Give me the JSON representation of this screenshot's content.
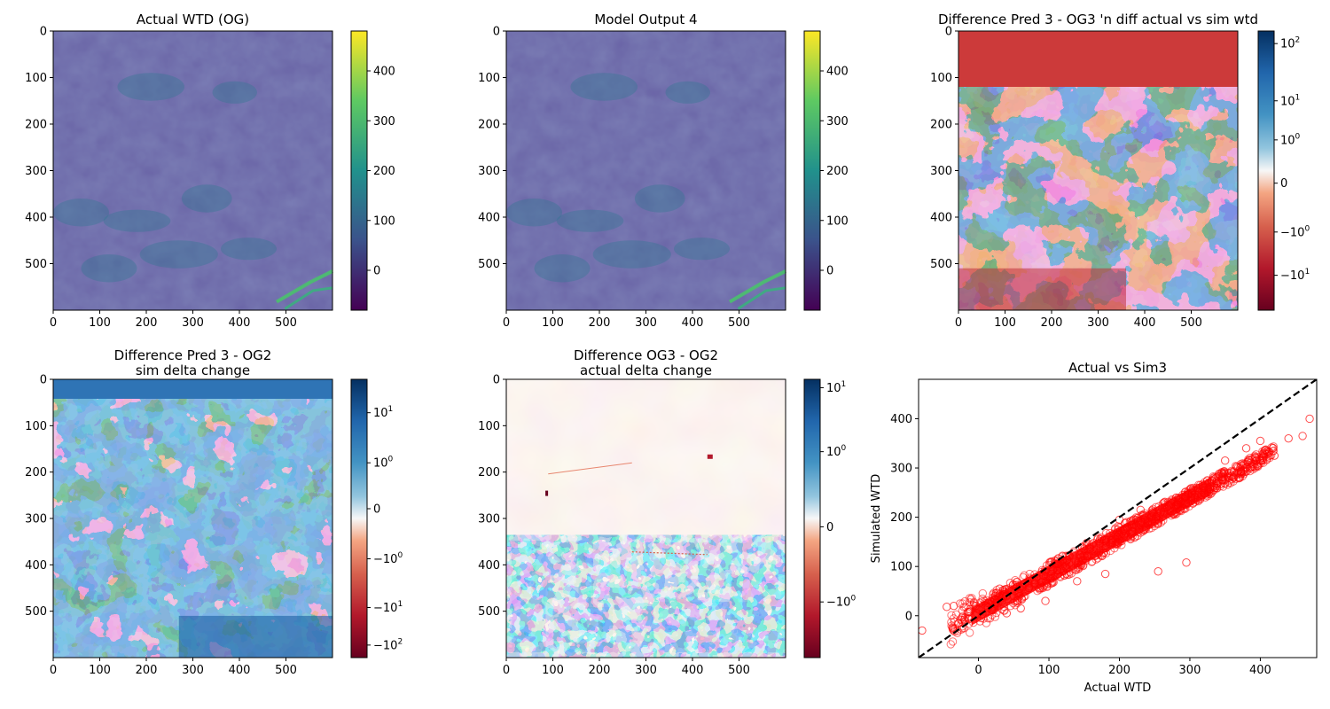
{
  "chart_data": [
    {
      "type": "heatmap",
      "title": "Actual WTD (OG)",
      "xticks": [
        0,
        100,
        200,
        300,
        400,
        500
      ],
      "yticks": [
        0,
        100,
        200,
        300,
        400,
        500
      ],
      "xlim": [
        0,
        600
      ],
      "ylim": [
        600,
        0
      ],
      "colormap": "viridis",
      "colorbar": {
        "scale": "linear",
        "range": [
          -80,
          480
        ],
        "ticks": [
          "0",
          "100",
          "200",
          "300",
          "400"
        ],
        "tick_values": [
          0,
          100,
          200,
          300,
          400
        ]
      }
    },
    {
      "type": "heatmap",
      "title": "Model Output 4",
      "xticks": [
        0,
        100,
        200,
        300,
        400,
        500
      ],
      "yticks": [
        0,
        100,
        200,
        300,
        400,
        500
      ],
      "xlim": [
        0,
        600
      ],
      "ylim": [
        600,
        0
      ],
      "colormap": "viridis",
      "colorbar": {
        "scale": "linear",
        "range": [
          -80,
          480
        ],
        "ticks": [
          "0",
          "100",
          "200",
          "300",
          "400"
        ],
        "tick_values": [
          0,
          100,
          200,
          300,
          400
        ]
      }
    },
    {
      "type": "heatmap",
      "title": "Difference Pred 3 - OG3 'n diff actual vs sim wtd",
      "xticks": [
        0,
        100,
        200,
        300,
        400,
        500
      ],
      "yticks": [
        0,
        100,
        200,
        300,
        400,
        500
      ],
      "xlim": [
        0,
        600
      ],
      "ylim": [
        600,
        0
      ],
      "colormap": "RdBu",
      "colorbar": {
        "scale": "symlog",
        "ticks": [
          "10^2",
          "10^1",
          "10^0",
          "0",
          "−10^0",
          "−10^1"
        ]
      }
    },
    {
      "type": "heatmap",
      "title": "Difference Pred 3 - OG2",
      "subtitle": "sim delta change",
      "xticks": [
        0,
        100,
        200,
        300,
        400,
        500
      ],
      "yticks": [
        0,
        100,
        200,
        300,
        400,
        500
      ],
      "xlim": [
        0,
        600
      ],
      "ylim": [
        600,
        0
      ],
      "colormap": "RdBu",
      "colorbar": {
        "scale": "symlog",
        "ticks": [
          "10^1",
          "10^0",
          "0",
          "−10^0",
          "−10^1",
          "−10^2"
        ]
      }
    },
    {
      "type": "heatmap",
      "title": "Difference OG3 - OG2",
      "subtitle": "actual delta change",
      "xticks": [
        0,
        100,
        200,
        300,
        400,
        500
      ],
      "yticks": [
        0,
        100,
        200,
        300,
        400,
        500
      ],
      "xlim": [
        0,
        600
      ],
      "ylim": [
        600,
        0
      ],
      "colormap": "RdBu",
      "colorbar": {
        "scale": "symlog",
        "ticks": [
          "10^1",
          "10^0",
          "0",
          "−10^0"
        ]
      }
    },
    {
      "type": "scatter",
      "title": "Actual vs Sim3",
      "xlabel": "Actual WTD",
      "ylabel": "Simulated WTD",
      "xlim": [
        -85,
        480
      ],
      "ylim": [
        -85,
        480
      ],
      "xticks": [
        0,
        100,
        200,
        300,
        400
      ],
      "yticks": [
        0,
        100,
        200,
        300,
        400
      ],
      "reference_line": {
        "style": "dashed",
        "color": "#000000",
        "points": [
          [
            -85,
            -85
          ],
          [
            480,
            480
          ]
        ]
      },
      "marker": {
        "shape": "open-circle",
        "color": "#ff0000"
      },
      "trend": {
        "slope": 0.78,
        "intercept": 6,
        "spread_low_x": 28,
        "spread_high_x": 14
      },
      "outliers": [
        [
          -80,
          -30
        ],
        [
          -45,
          18
        ],
        [
          -35,
          20
        ],
        [
          -20,
          -8
        ],
        [
          470,
          400
        ],
        [
          440,
          360
        ],
        [
          420,
          325
        ],
        [
          400,
          355
        ],
        [
          295,
          108
        ],
        [
          255,
          90
        ],
        [
          180,
          85
        ],
        [
          140,
          70
        ],
        [
          120,
          90
        ],
        [
          95,
          30
        ],
        [
          60,
          15
        ],
        [
          40,
          5
        ],
        [
          30,
          55
        ],
        [
          200,
          195
        ],
        [
          230,
          215
        ],
        [
          350,
          315
        ],
        [
          460,
          365
        ],
        [
          380,
          340
        ]
      ]
    }
  ]
}
